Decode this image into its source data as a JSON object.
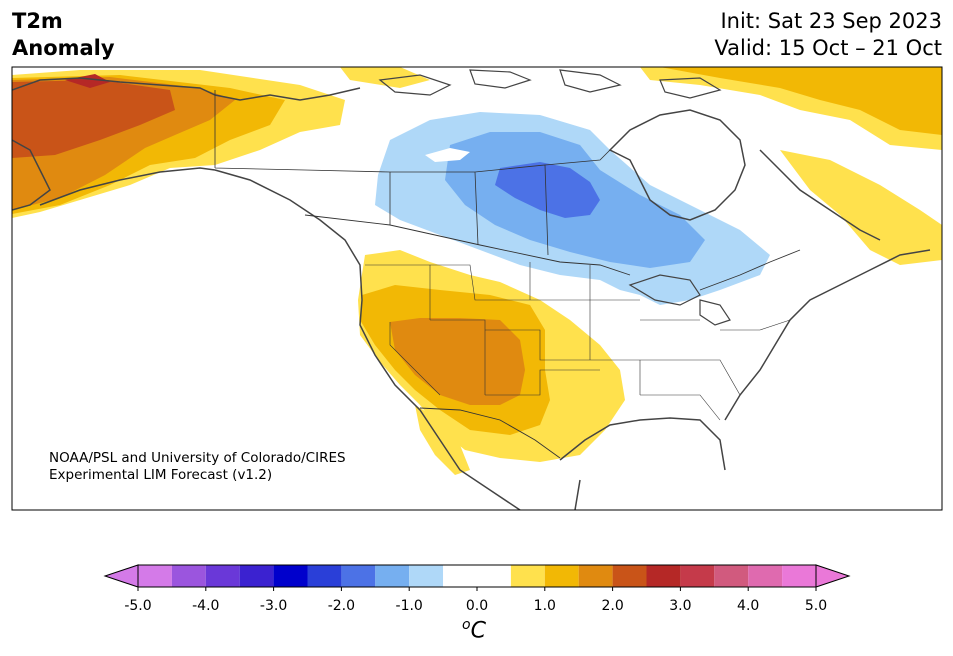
{
  "title": {
    "left_line1": "T2m",
    "left_line2": "Anomaly",
    "init": "Init: Sat 23 Sep 2023",
    "valid": "Valid: 15 Oct – 21 Oct"
  },
  "credit": {
    "line1": "NOAA/PSL and University of Colorado/CIRES",
    "line2": "Experimental LIM Forecast (v1.2)"
  },
  "colorbar": {
    "tick_labels": [
      "-5.0",
      "-4.0",
      "-3.0",
      "-2.0",
      "-1.0",
      "0.0",
      "1.0",
      "2.0",
      "3.0",
      "4.0",
      "5.0"
    ],
    "tick_values": [
      -5,
      -4,
      -3,
      -2,
      -1,
      0,
      1,
      2,
      3,
      4,
      5
    ],
    "bin_edges": [
      -5,
      -4.5,
      -4,
      -3.5,
      -3,
      -2.5,
      -2,
      -1.5,
      -1,
      -0.5,
      0.5,
      1,
      1.5,
      2,
      2.5,
      3,
      3.5,
      4,
      4.5,
      5
    ],
    "colors": [
      "#d47ae8",
      "#9b55de",
      "#6a38d8",
      "#3b22d0",
      "#0000cc",
      "#2a3fd8",
      "#4c72e6",
      "#76aff0",
      "#afd8f8",
      "#ffffff",
      "#ffe14d",
      "#f2b805",
      "#e08a10",
      "#c95418",
      "#b52826",
      "#c53a4a",
      "#d15a7e",
      "#df6aaf",
      "#ea78d8"
    ],
    "under_color": "#d47ae8",
    "over_color": "#ea78d8",
    "units_base": "C",
    "units_sup": "o"
  },
  "colors": {
    "land": "#ffffff",
    "coast": "#444444",
    "border": "#333333"
  }
}
